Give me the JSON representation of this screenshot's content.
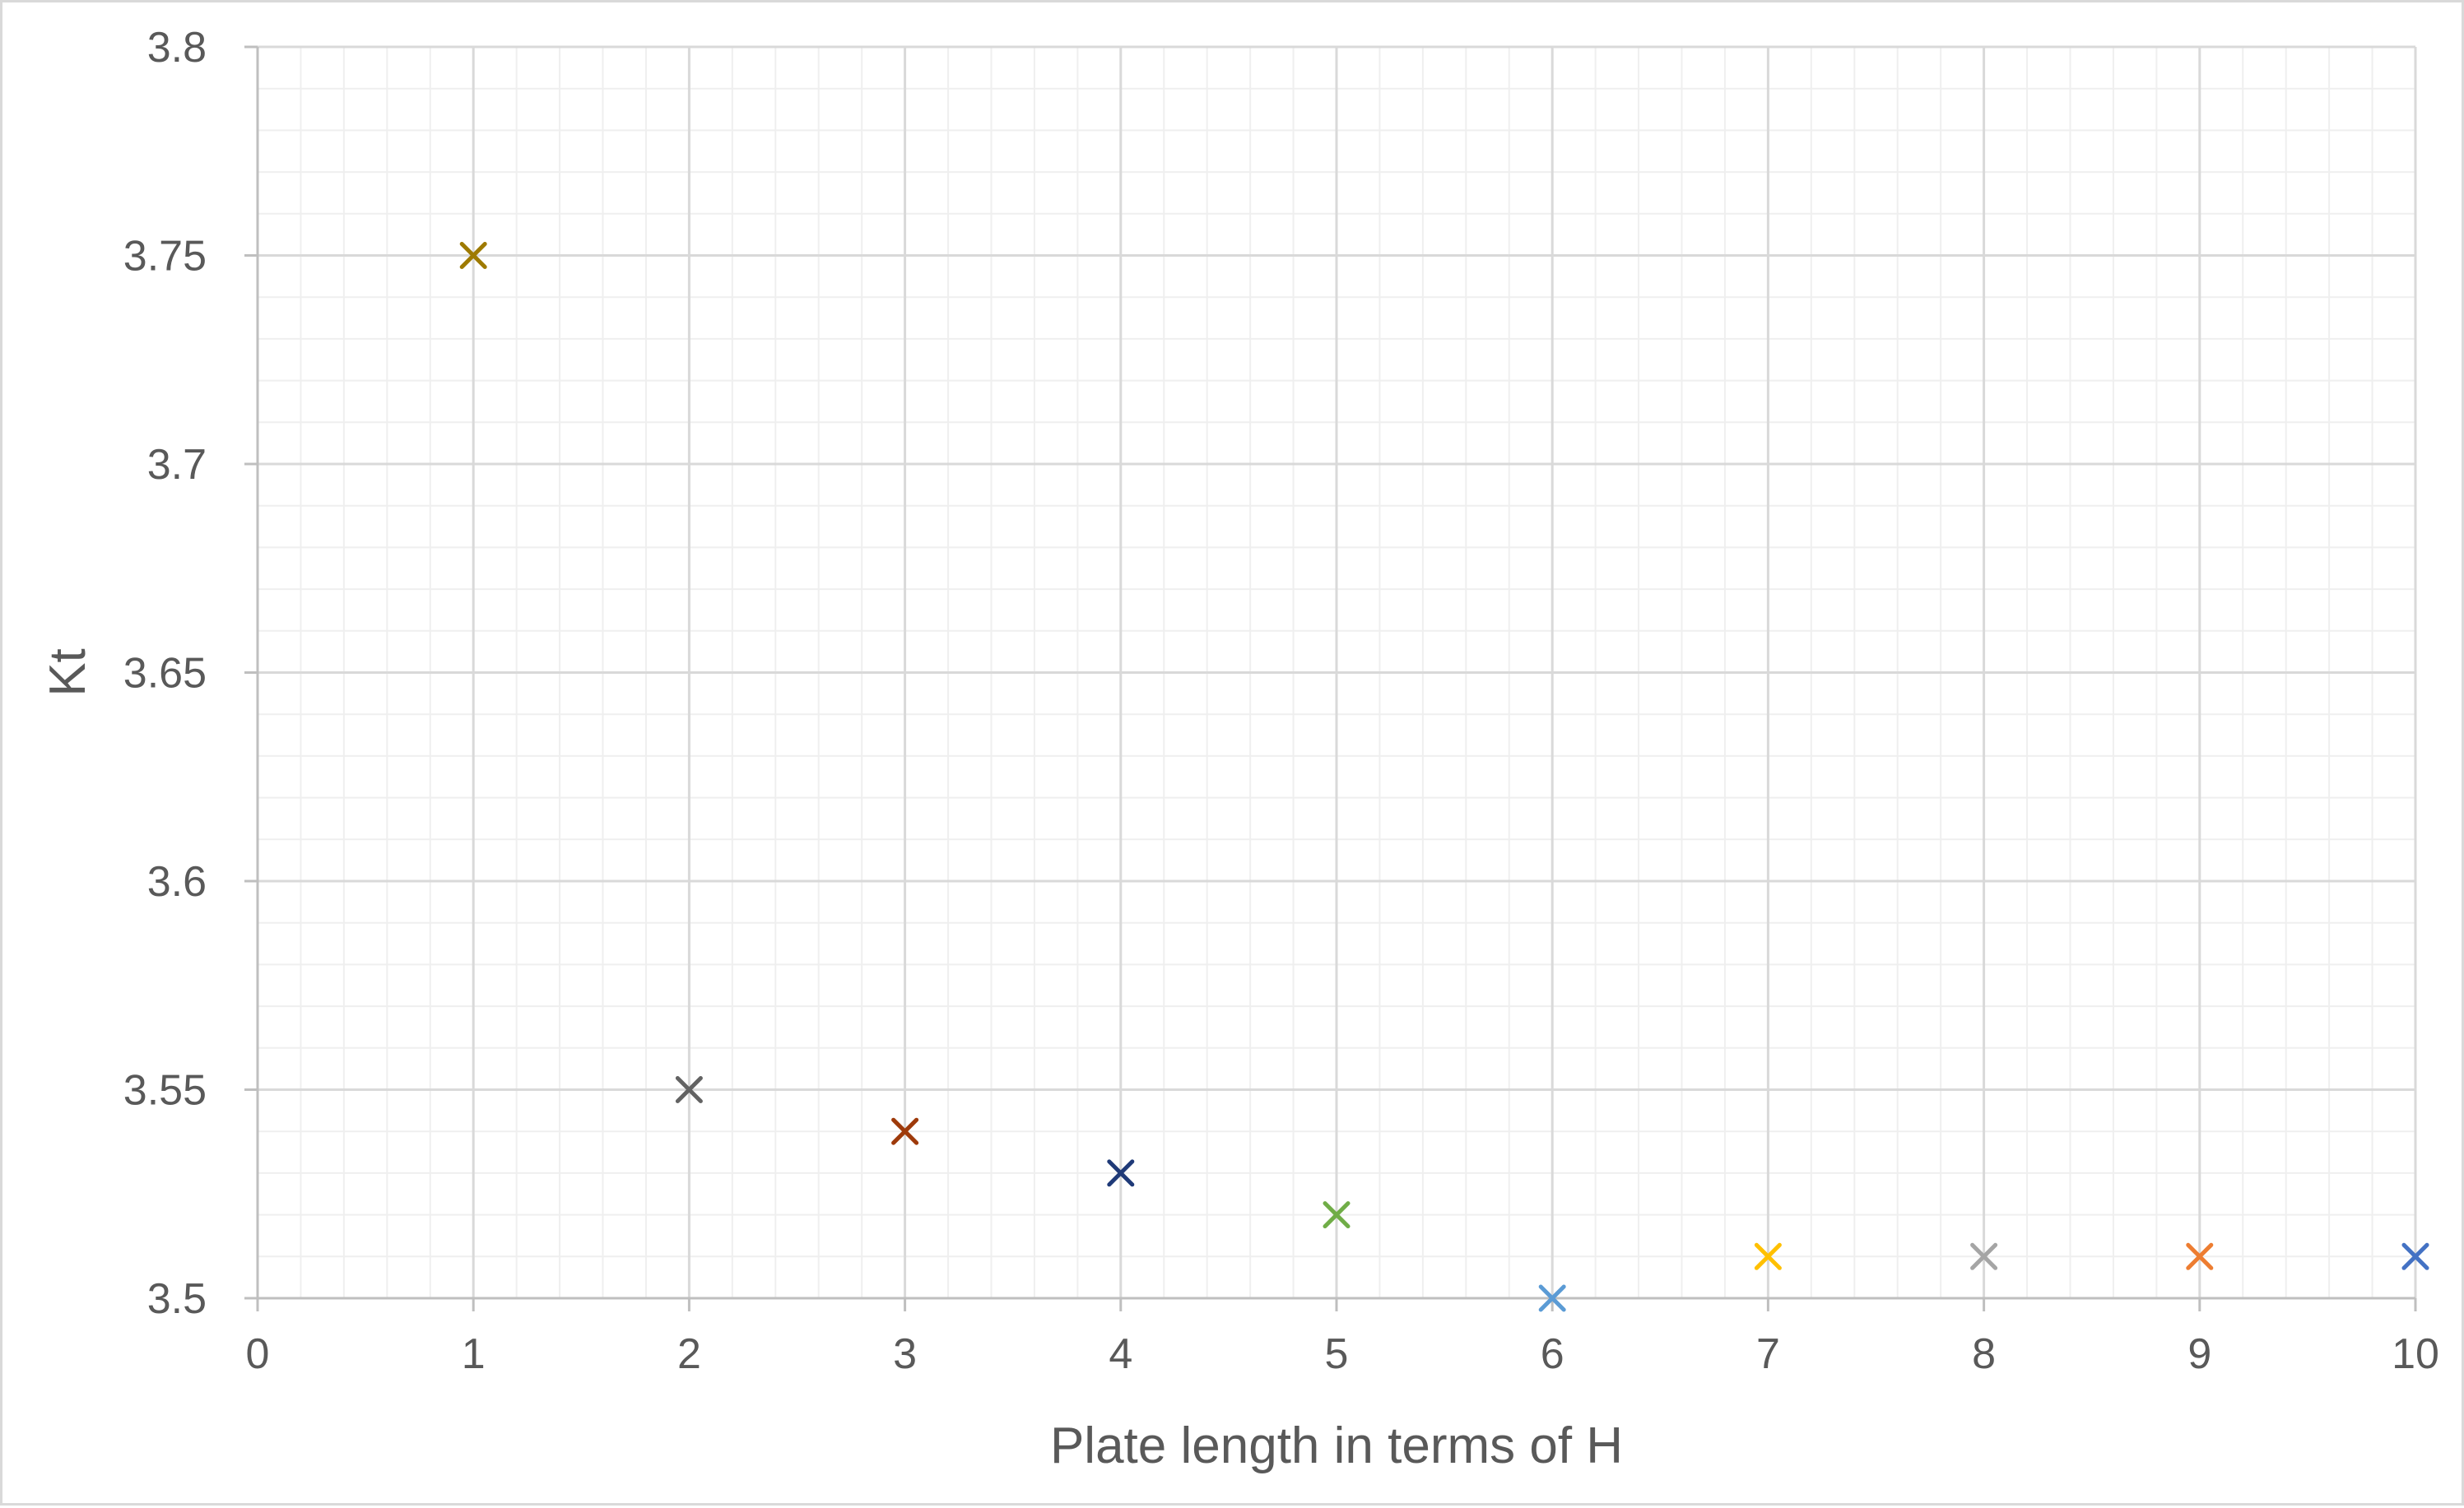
{
  "chart_data": {
    "type": "scatter",
    "title": "",
    "xlabel": "Plate length  in terms of H",
    "ylabel": "Kt",
    "xlim": [
      0,
      10
    ],
    "ylim": [
      3.5,
      3.8
    ],
    "x_ticks": [
      "0",
      "1",
      "2",
      "3",
      "4",
      "5",
      "6",
      "7",
      "8",
      "9",
      "10"
    ],
    "y_ticks": [
      "3.5",
      "3.55",
      "3.6",
      "3.65",
      "3.7",
      "3.75",
      "3.8"
    ],
    "grid": true,
    "minor_grid": true,
    "legend": "none",
    "marker": "x",
    "points": [
      {
        "x": 1,
        "y": 3.75,
        "color": "#9e7a00"
      },
      {
        "x": 2,
        "y": 3.55,
        "color": "#636363"
      },
      {
        "x": 3,
        "y": 3.54,
        "color": "#9e3a0a"
      },
      {
        "x": 4,
        "y": 3.53,
        "color": "#1f3a78"
      },
      {
        "x": 5,
        "y": 3.52,
        "color": "#70ad47"
      },
      {
        "x": 6,
        "y": 3.5,
        "color": "#5b9bd5"
      },
      {
        "x": 7,
        "y": 3.51,
        "color": "#ffc000"
      },
      {
        "x": 8,
        "y": 3.51,
        "color": "#a5a5a5"
      },
      {
        "x": 9,
        "y": 3.51,
        "color": "#ed7d31"
      },
      {
        "x": 10,
        "y": 3.51,
        "color": "#4472c4"
      }
    ]
  }
}
